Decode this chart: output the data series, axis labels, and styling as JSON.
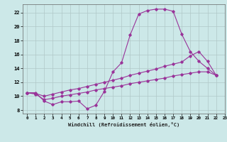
{
  "xlabel": "Windchill (Refroidissement éolien,°C)",
  "series": {
    "main_x": [
      0,
      1,
      2,
      3,
      4,
      5,
      6,
      7,
      8,
      9,
      10,
      11,
      12,
      13,
      14,
      15,
      16,
      17,
      18,
      19,
      20,
      21,
      22
    ],
    "main_y": [
      10.5,
      10.5,
      9.3,
      8.8,
      9.2,
      9.2,
      9.3,
      8.2,
      8.7,
      10.7,
      13.5,
      14.8,
      18.8,
      21.8,
      22.3,
      22.5,
      22.5,
      22.2,
      18.9,
      16.4,
      15.0,
      14.0,
      13.0
    ],
    "upper_x": [
      0,
      1,
      2,
      3,
      4,
      5,
      6,
      7,
      8,
      9,
      10,
      11,
      12,
      13,
      14,
      15,
      16,
      17,
      18,
      19,
      20,
      21,
      22
    ],
    "upper_y": [
      10.5,
      10.4,
      10.0,
      10.3,
      10.6,
      10.9,
      11.1,
      11.4,
      11.7,
      12.0,
      12.3,
      12.6,
      13.0,
      13.3,
      13.6,
      13.9,
      14.3,
      14.6,
      14.9,
      15.8,
      16.4,
      15.0,
      13.0
    ],
    "lower_x": [
      0,
      1,
      2,
      3,
      4,
      5,
      6,
      7,
      8,
      9,
      10,
      11,
      12,
      13,
      14,
      15,
      16,
      17,
      18,
      19,
      20,
      21,
      22
    ],
    "lower_y": [
      10.5,
      10.3,
      9.5,
      9.7,
      10.0,
      10.2,
      10.4,
      10.6,
      10.9,
      11.1,
      11.3,
      11.5,
      11.8,
      12.0,
      12.2,
      12.4,
      12.6,
      12.9,
      13.1,
      13.3,
      13.5,
      13.5,
      13.0
    ]
  },
  "color": "#993399",
  "bg_color": "#cce8e8",
  "grid_color": "#b0c8c8",
  "xlim": [
    -0.5,
    23
  ],
  "ylim": [
    7.5,
    23.2
  ],
  "yticks": [
    8,
    10,
    12,
    14,
    16,
    18,
    20,
    22
  ],
  "xticks": [
    0,
    1,
    2,
    3,
    4,
    5,
    6,
    7,
    8,
    9,
    10,
    11,
    12,
    13,
    14,
    15,
    16,
    17,
    18,
    19,
    20,
    21,
    22,
    23
  ]
}
